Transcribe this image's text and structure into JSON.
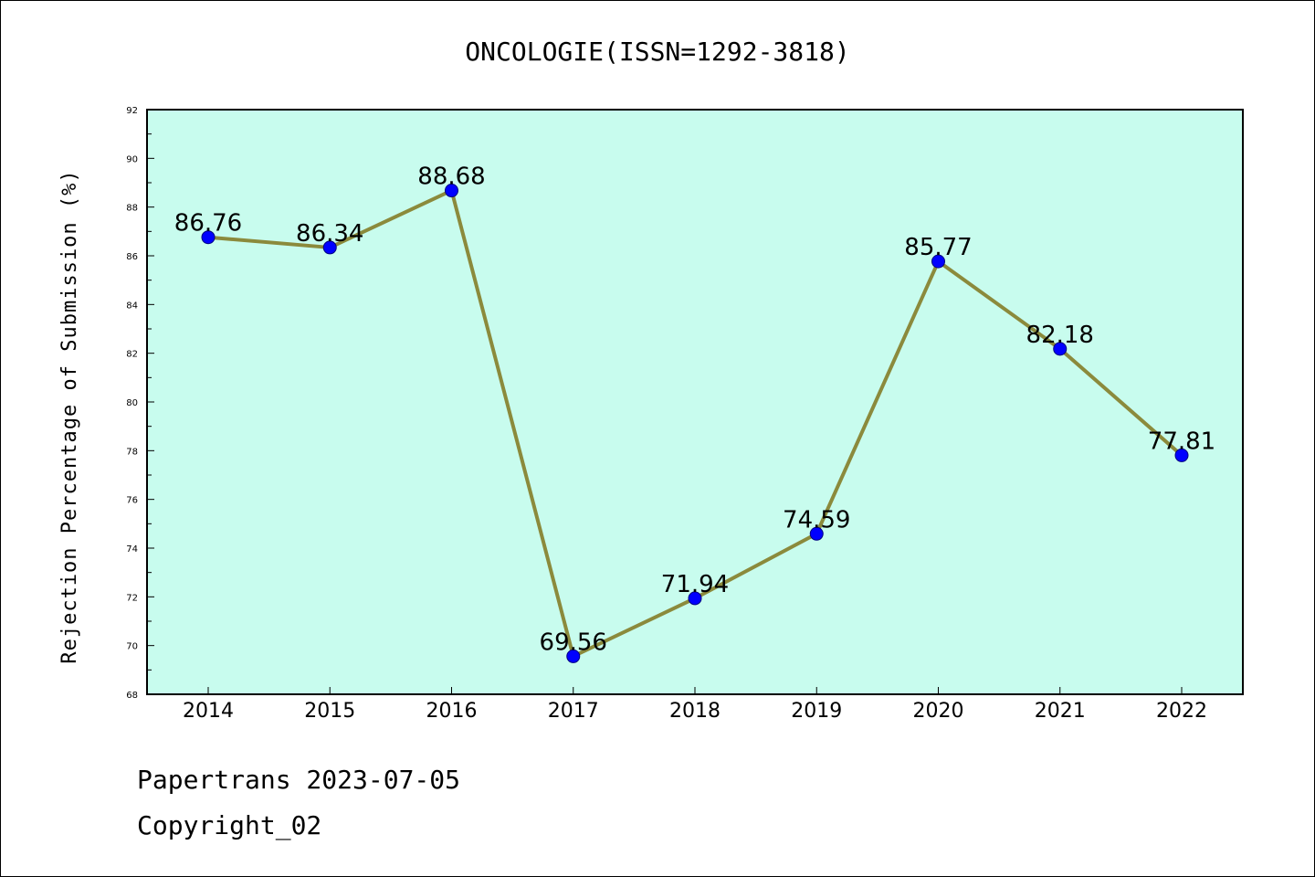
{
  "chart_data": {
    "type": "line",
    "title": "ONCOLOGIE(ISSN=1292-3818)",
    "ylabel": "Rejection Percentage of Submission (%)",
    "xlabel": "",
    "categories": [
      "2014",
      "2015",
      "2016",
      "2017",
      "2018",
      "2019",
      "2020",
      "2021",
      "2022"
    ],
    "values": [
      86.76,
      86.34,
      88.68,
      69.56,
      71.94,
      74.59,
      85.77,
      82.18,
      77.81
    ],
    "data_labels": [
      "86.76",
      "86.34",
      "88.68",
      "69.56",
      "71.94",
      "74.59",
      "85.77",
      "82.18",
      "77.81"
    ],
    "ylim": [
      68,
      92
    ],
    "yticks": [
      68,
      70,
      72,
      74,
      76,
      78,
      80,
      82,
      84,
      86,
      88,
      90,
      92
    ],
    "grid": false,
    "legend": "none",
    "colors": {
      "plot_background": "#c8fcee",
      "line": "#8b8a3c",
      "marker": "#0000ff",
      "marker_edge": "#000080"
    }
  },
  "footer": {
    "line1": "Papertrans 2023-07-05",
    "line2": "Copyright_02"
  }
}
